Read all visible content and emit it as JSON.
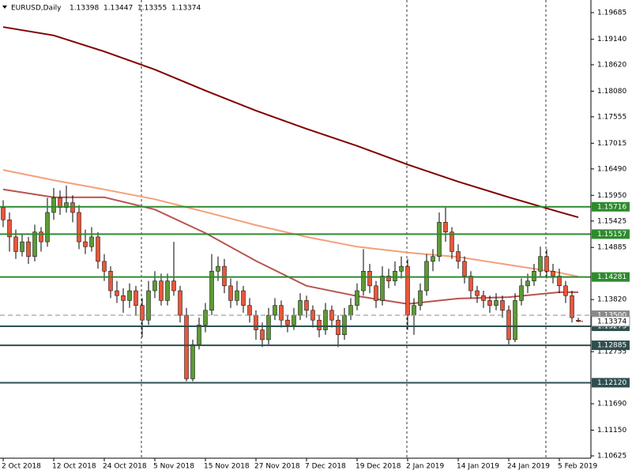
{
  "chart_data": {
    "type": "candlestick",
    "title": "EURUSD,Daily",
    "ylim": [
      1.10577,
      1.19943
    ],
    "xlim": [
      -0.5,
      93
    ],
    "yticks": [
      1.19685,
      {
        "value": 1.1914,
        "label": "1.19140"
      },
      {
        "value": 1.1862,
        "label": "1.18620"
      },
      {
        "value": 1.1808,
        "label": "1.18080"
      },
      1.17555,
      1.17015,
      {
        "value": 1.1649,
        "label": "1.16490"
      },
      {
        "value": 1.1595,
        "label": "1.15950"
      },
      1.15425,
      1.14885,
      {
        "value": 1.1382,
        "label": "1.13820"
      },
      1.12755,
      {
        "value": 1.1169,
        "label": "1.11690"
      },
      {
        "value": 1.1115,
        "label": "1.11150"
      },
      1.10625
    ],
    "categories": [
      "2 Oct 2018",
      null,
      null,
      null,
      null,
      null,
      null,
      null,
      "12 Oct 2018",
      null,
      null,
      null,
      null,
      null,
      null,
      null,
      "24 Oct 2018",
      null,
      null,
      null,
      null,
      null,
      null,
      null,
      "5 Nov 2018",
      null,
      null,
      null,
      null,
      null,
      null,
      null,
      "15 Nov 2018",
      null,
      null,
      null,
      null,
      null,
      null,
      null,
      "27 Nov 2018",
      null,
      null,
      null,
      null,
      null,
      null,
      null,
      "7 Dec 2018",
      null,
      null,
      null,
      null,
      null,
      null,
      null,
      "19 Dec 2018",
      null,
      null,
      null,
      null,
      null,
      null,
      null,
      "2 Jan 2019",
      null,
      null,
      null,
      null,
      null,
      null,
      null,
      "14 Jan 2019",
      null,
      null,
      null,
      null,
      null,
      null,
      null,
      "24 Jan 2019",
      null,
      null,
      null,
      null,
      null,
      null,
      null,
      "5 Feb 2019",
      null,
      null,
      null
    ],
    "bull_color": "#5d9a35",
    "bear_color": "#e8573b",
    "candles": [
      [
        1.157,
        1.1585,
        1.153,
        1.1545
      ],
      [
        1.1545,
        1.156,
        1.148,
        1.151
      ],
      [
        1.151,
        1.1525,
        1.1465,
        1.148
      ],
      [
        1.148,
        1.1515,
        1.147,
        1.15
      ],
      [
        1.15,
        1.151,
        1.1455,
        1.147
      ],
      [
        1.147,
        1.1535,
        1.146,
        1.152
      ],
      [
        1.152,
        1.153,
        1.148,
        1.15
      ],
      [
        1.15,
        1.159,
        1.149,
        1.156
      ],
      [
        1.156,
        1.161,
        1.1545,
        1.159
      ],
      [
        1.159,
        1.1605,
        1.1555,
        1.157
      ],
      [
        1.157,
        1.1615,
        1.156,
        1.158
      ],
      [
        1.158,
        1.1595,
        1.154,
        1.156
      ],
      [
        1.156,
        1.1575,
        1.1485,
        1.15
      ],
      [
        1.15,
        1.1525,
        1.1475,
        1.149
      ],
      [
        1.149,
        1.153,
        1.148,
        1.151
      ],
      [
        1.151,
        1.152,
        1.1445,
        1.146
      ],
      [
        1.146,
        1.1475,
        1.142,
        1.144
      ],
      [
        1.144,
        1.145,
        1.1385,
        1.14
      ],
      [
        1.14,
        1.142,
        1.1375,
        1.139
      ],
      [
        1.139,
        1.1405,
        1.1355,
        1.138
      ],
      [
        1.138,
        1.1415,
        1.1365,
        1.14
      ],
      [
        1.14,
        1.141,
        1.135,
        1.137
      ],
      [
        1.137,
        1.1385,
        1.1305,
        1.134
      ],
      [
        1.134,
        1.142,
        1.133,
        1.14
      ],
      [
        1.14,
        1.144,
        1.1385,
        1.142
      ],
      [
        1.142,
        1.1435,
        1.137,
        1.138
      ],
      [
        1.138,
        1.1435,
        1.137,
        1.142
      ],
      [
        1.142,
        1.15,
        1.139,
        1.14
      ],
      [
        1.14,
        1.141,
        1.1335,
        1.135
      ],
      [
        1.135,
        1.1365,
        1.1215,
        1.122
      ],
      [
        1.122,
        1.13,
        1.1215,
        1.129
      ],
      [
        1.129,
        1.1345,
        1.128,
        1.133
      ],
      [
        1.133,
        1.1375,
        1.1315,
        1.136
      ],
      [
        1.136,
        1.1475,
        1.135,
        1.144
      ],
      [
        1.144,
        1.147,
        1.142,
        1.145
      ],
      [
        1.145,
        1.1465,
        1.1395,
        1.141
      ],
      [
        1.141,
        1.1425,
        1.1365,
        1.138
      ],
      [
        1.138,
        1.142,
        1.137,
        1.14
      ],
      [
        1.14,
        1.141,
        1.1355,
        1.137
      ],
      [
        1.137,
        1.1385,
        1.1335,
        1.135
      ],
      [
        1.135,
        1.136,
        1.13,
        1.132
      ],
      [
        1.132,
        1.1335,
        1.1285,
        1.13
      ],
      [
        1.13,
        1.1365,
        1.129,
        1.135
      ],
      [
        1.135,
        1.1385,
        1.134,
        1.137
      ],
      [
        1.137,
        1.138,
        1.1325,
        1.134
      ],
      [
        1.134,
        1.135,
        1.1315,
        1.133
      ],
      [
        1.133,
        1.1365,
        1.132,
        1.135
      ],
      [
        1.135,
        1.1395,
        1.134,
        1.138
      ],
      [
        1.138,
        1.139,
        1.1345,
        1.136
      ],
      [
        1.136,
        1.137,
        1.1325,
        1.134
      ],
      [
        1.134,
        1.135,
        1.1305,
        1.132
      ],
      [
        1.132,
        1.1375,
        1.131,
        1.136
      ],
      [
        1.136,
        1.137,
        1.1325,
        1.134
      ],
      [
        1.134,
        1.135,
        1.1285,
        1.131
      ],
      [
        1.131,
        1.1365,
        1.13,
        1.135
      ],
      [
        1.135,
        1.1385,
        1.134,
        1.137
      ],
      [
        1.137,
        1.1415,
        1.136,
        1.14
      ],
      [
        1.14,
        1.1485,
        1.139,
        1.144
      ],
      [
        1.144,
        1.1455,
        1.1395,
        1.141
      ],
      [
        1.141,
        1.142,
        1.1365,
        1.138
      ],
      [
        1.138,
        1.145,
        1.137,
        1.143
      ],
      [
        1.143,
        1.1445,
        1.1405,
        1.142
      ],
      [
        1.142,
        1.146,
        1.141,
        1.144
      ],
      [
        1.144,
        1.147,
        1.1425,
        1.145
      ],
      [
        1.145,
        1.1465,
        1.132,
        1.135
      ],
      [
        1.135,
        1.1385,
        1.131,
        1.137
      ],
      [
        1.137,
        1.1415,
        1.136,
        1.14
      ],
      [
        1.14,
        1.1475,
        1.139,
        1.146
      ],
      [
        1.146,
        1.1485,
        1.144,
        1.147
      ],
      [
        1.147,
        1.156,
        1.146,
        1.154
      ],
      [
        1.154,
        1.157,
        1.15,
        1.152
      ],
      [
        1.152,
        1.153,
        1.1465,
        1.148
      ],
      [
        1.148,
        1.1495,
        1.1445,
        1.146
      ],
      [
        1.146,
        1.147,
        1.1415,
        1.143
      ],
      [
        1.143,
        1.144,
        1.1385,
        1.14
      ],
      [
        1.14,
        1.141,
        1.1375,
        1.139
      ],
      [
        1.139,
        1.14,
        1.1365,
        1.138
      ],
      [
        1.138,
        1.139,
        1.1355,
        1.137
      ],
      [
        1.137,
        1.1395,
        1.136,
        1.138
      ],
      [
        1.138,
        1.139,
        1.1345,
        1.136
      ],
      [
        1.136,
        1.137,
        1.129,
        1.13
      ],
      [
        1.13,
        1.1395,
        1.1295,
        1.138
      ],
      [
        1.138,
        1.1425,
        1.137,
        1.141
      ],
      [
        1.141,
        1.1435,
        1.1395,
        1.142
      ],
      [
        1.142,
        1.1455,
        1.141,
        1.144
      ],
      [
        1.144,
        1.149,
        1.143,
        1.147
      ],
      [
        1.147,
        1.1485,
        1.1425,
        1.144
      ],
      [
        1.144,
        1.1455,
        1.1415,
        1.143
      ],
      [
        1.143,
        1.1445,
        1.1395,
        1.141
      ],
      [
        1.141,
        1.142,
        1.1375,
        1.139
      ],
      [
        1.139,
        1.14,
        1.1335,
        1.1345
      ],
      [
        1.13398,
        1.13447,
        1.13355,
        1.13374
      ]
    ],
    "moving_averages": [
      {
        "color": "#800000",
        "x": [
          0,
          8,
          16,
          24,
          32,
          40,
          48,
          56,
          64,
          72,
          80,
          88,
          91
        ],
        "values": [
          1.1939,
          1.1922,
          1.1889,
          1.1852,
          1.1809,
          1.1768,
          1.1731,
          1.1696,
          1.1658,
          1.1623,
          1.1591,
          1.1561,
          1.155
        ]
      },
      {
        "color": "#f4a078",
        "x": [
          0,
          8,
          16,
          24,
          32,
          40,
          48,
          56,
          64,
          72,
          80,
          88,
          91
        ],
        "values": [
          1.1647,
          1.1626,
          1.1607,
          1.1587,
          1.1561,
          1.1534,
          1.151,
          1.149,
          1.1478,
          1.1469,
          1.1453,
          1.1437,
          1.1429
        ]
      },
      {
        "color": "#b85450",
        "x": [
          0,
          8,
          16,
          24,
          32,
          40,
          48,
          56,
          64,
          72,
          80,
          88,
          91
        ],
        "values": [
          1.1607,
          1.1591,
          1.1591,
          1.1566,
          1.1518,
          1.1461,
          1.141,
          1.1389,
          1.1373,
          1.1384,
          1.1387,
          1.1397,
          1.1397
        ]
      }
    ],
    "levels": [
      {
        "value": 1.15716,
        "color": "#2f8a2f",
        "dashed": false
      },
      {
        "value": 1.15157,
        "color": "#2f8a2f",
        "dashed": false
      },
      {
        "value": 1.14281,
        "color": "#2f8a2f",
        "dashed": false
      },
      {
        "value": 1.135,
        "label": "1.13500",
        "color": "#8a8a8a",
        "dashed": true
      },
      {
        "value": 1.13273,
        "color": "#2f4f4f",
        "dashed": false
      },
      {
        "value": 1.12885,
        "color": "#2f4f4f",
        "dashed": false
      },
      {
        "value": 1.1212,
        "label": "1.12120",
        "color": "#2f4f4f",
        "dashed": false
      }
    ]
  }
}
